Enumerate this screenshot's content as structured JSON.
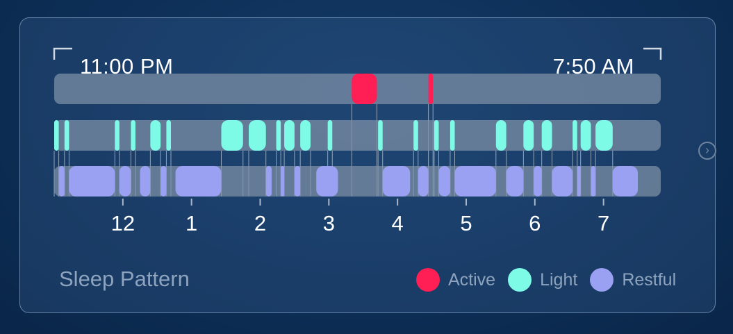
{
  "widget": {
    "title": "Sleep Pattern",
    "start_label": "11:00 PM",
    "end_label": "7:50 AM",
    "next_icon": "chevron-right-circle-icon"
  },
  "legend": [
    {
      "label": "Active",
      "color": "#ff1f55"
    },
    {
      "label": "Light",
      "color": "#7dfbe6"
    },
    {
      "label": "Restful",
      "color": "#9aa0f2"
    }
  ],
  "chart_data": {
    "type": "timeline",
    "x_unit": "hour of night",
    "x_start": "23:00",
    "x_end": "07:50",
    "x_tick_labels": [
      "12",
      "1",
      "2",
      "3",
      "4",
      "5",
      "6",
      "7"
    ],
    "series": [
      {
        "name": "Active",
        "color": "#ff1f55",
        "segments": [
          [
            "03:20",
            "03:42"
          ],
          [
            "04:27",
            "04:31"
          ]
        ]
      },
      {
        "name": "Light",
        "color": "#7dfbe6",
        "segments": [
          [
            "23:00",
            "23:04"
          ],
          [
            "23:09",
            "23:13"
          ],
          [
            "23:53",
            "23:57"
          ],
          [
            "00:07",
            "00:11"
          ],
          [
            "00:24",
            "00:33"
          ],
          [
            "00:38",
            "00:42"
          ],
          [
            "01:26",
            "01:45"
          ],
          [
            "01:50",
            "02:05"
          ],
          [
            "02:14",
            "02:18"
          ],
          [
            "02:21",
            "02:30"
          ],
          [
            "02:35",
            "02:44"
          ],
          [
            "02:59",
            "03:03"
          ],
          [
            "03:43",
            "03:47"
          ],
          [
            "04:14",
            "04:18"
          ],
          [
            "04:32",
            "04:36"
          ],
          [
            "04:46",
            "04:50"
          ],
          [
            "05:26",
            "05:35"
          ],
          [
            "05:50",
            "05:59"
          ],
          [
            "06:06",
            "06:15"
          ],
          [
            "06:33",
            "06:37"
          ],
          [
            "06:40",
            "06:49"
          ],
          [
            "06:53",
            "07:08"
          ]
        ]
      },
      {
        "name": "Restful",
        "color": "#9aa0f2",
        "segments": [
          [
            "23:04",
            "23:09"
          ],
          [
            "23:13",
            "23:53"
          ],
          [
            "23:57",
            "00:07"
          ],
          [
            "00:15",
            "00:24"
          ],
          [
            "00:33",
            "00:38"
          ],
          [
            "00:46",
            "01:26"
          ],
          [
            "02:05",
            "02:10"
          ],
          [
            "02:18",
            "02:21"
          ],
          [
            "02:30",
            "02:35"
          ],
          [
            "02:49",
            "03:08"
          ],
          [
            "03:47",
            "04:11"
          ],
          [
            "04:18",
            "04:27"
          ],
          [
            "04:36",
            "04:46"
          ],
          [
            "04:50",
            "05:26"
          ],
          [
            "05:35",
            "05:50"
          ],
          [
            "05:59",
            "06:06"
          ],
          [
            "06:15",
            "06:33"
          ],
          [
            "06:37",
            "06:40"
          ],
          [
            "06:49",
            "06:53"
          ],
          [
            "07:08",
            "07:30"
          ]
        ]
      }
    ]
  }
}
